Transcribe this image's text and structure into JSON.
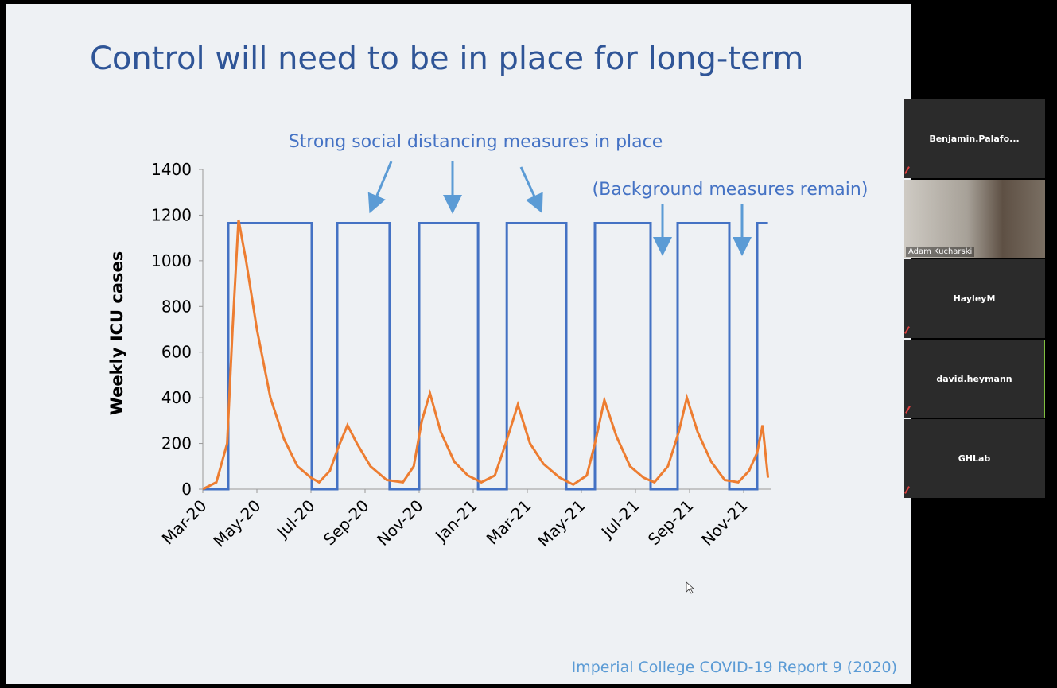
{
  "chart_data": {
    "type": "line",
    "title": "Control will need to be in place for long-term",
    "y_label": "Weekly ICU cases",
    "annotations": [
      "Strong social distancing measures in place",
      "(Background measures remain)"
    ],
    "source": "Imperial College COVID-19 Report 9 (2020)",
    "xlim": [
      0,
      21
    ],
    "xticks": [
      {
        "value": 0,
        "label": "Mar-20"
      },
      {
        "value": 2,
        "label": "May-20"
      },
      {
        "value": 4,
        "label": "Jul-20"
      },
      {
        "value": 6,
        "label": "Sep-20"
      },
      {
        "value": 8,
        "label": "Nov-20"
      },
      {
        "value": 10,
        "label": "Jan-21"
      },
      {
        "value": 12,
        "label": "Mar-21"
      },
      {
        "value": 14,
        "label": "May-21"
      },
      {
        "value": 16,
        "label": "Jul-21"
      },
      {
        "value": 18,
        "label": "Sep-21"
      },
      {
        "value": 20,
        "label": "Nov-21"
      }
    ],
    "ylim": [
      0,
      1400
    ],
    "yticks": [
      0,
      200,
      400,
      600,
      800,
      1000,
      1200,
      1400
    ],
    "series": [
      {
        "color": "#4472c4",
        "x": [
          0,
          0.94,
          0.94,
          4.03,
          4.03,
          4.97,
          4.97,
          6.91,
          6.91,
          8.0,
          8.0,
          10.18,
          10.18,
          11.24,
          11.24,
          13.44,
          13.44,
          14.5,
          14.5,
          16.56,
          16.56,
          17.56,
          17.56,
          19.47,
          19.47,
          20.5,
          20.5,
          20.9
        ],
        "values": [
          0,
          0,
          1165,
          1165,
          0,
          0,
          1165,
          1165,
          0,
          0,
          1165,
          1165,
          0,
          0,
          1165,
          1165,
          0,
          0,
          1165,
          1165,
          0,
          0,
          1165,
          1165,
          0,
          0,
          1165,
          1165
        ]
      },
      {
        "color": "#ed7d31",
        "x": [
          0,
          0.5,
          0.9,
          1.1,
          1.32,
          1.6,
          2.0,
          2.5,
          3.0,
          3.5,
          4.0,
          4.3,
          4.7,
          5.0,
          5.35,
          5.7,
          6.2,
          6.8,
          7.4,
          7.8,
          8.1,
          8.4,
          8.8,
          9.3,
          9.8,
          10.3,
          10.8,
          11.2,
          11.65,
          12.1,
          12.6,
          13.2,
          13.7,
          14.2,
          14.5,
          14.85,
          15.3,
          15.8,
          16.3,
          16.7,
          17.2,
          17.6,
          17.9,
          18.3,
          18.8,
          19.3,
          19.8,
          20.2,
          20.5,
          20.7,
          20.9
        ],
        "values": [
          0,
          30,
          200,
          700,
          1180,
          1000,
          700,
          400,
          220,
          100,
          50,
          30,
          80,
          180,
          280,
          200,
          100,
          40,
          30,
          100,
          300,
          420,
          250,
          120,
          60,
          30,
          60,
          200,
          370,
          200,
          110,
          50,
          20,
          60,
          200,
          390,
          230,
          100,
          50,
          30,
          100,
          250,
          400,
          250,
          120,
          40,
          30,
          80,
          160,
          280,
          50
        ]
      }
    ]
  },
  "participants": [
    "Benjamin.Palafo...",
    "Adam Kucharski",
    "HayleyM",
    "david.heymann",
    "GHLab"
  ]
}
